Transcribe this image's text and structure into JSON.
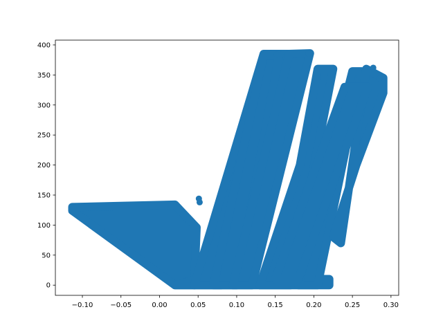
{
  "chart_data": {
    "type": "scatter",
    "title": "",
    "xlabel": "",
    "ylabel": "",
    "xlim": [
      -0.135,
      0.31
    ],
    "ylim": [
      -17,
      408
    ],
    "grid": false,
    "legend": "none",
    "marker_color": "#1f77b4",
    "x_ticks": [
      -0.1,
      -0.05,
      0.0,
      0.05,
      0.1,
      0.15,
      0.2,
      0.25,
      0.3
    ],
    "x_tick_labels": [
      "−0.10",
      "−0.05",
      "0.00",
      "0.05",
      "0.10",
      "0.15",
      "0.20",
      "0.25",
      "0.30"
    ],
    "y_ticks": [
      0,
      50,
      100,
      150,
      200,
      250,
      300,
      350,
      400
    ],
    "y_tick_labels": [
      "0",
      "50",
      "100",
      "150",
      "200",
      "250",
      "300",
      "350",
      "400"
    ],
    "series": [
      {
        "regions": [
          {
            "shape": "polygon",
            "points": [
              [
                -0.113,
                130
              ],
              [
                0.02,
                134
              ],
              [
                0.048,
                96
              ],
              [
                0.045,
                0
              ],
              [
                0.02,
                0
              ],
              [
                -0.113,
                124
              ]
            ]
          },
          {
            "shape": "polygon",
            "points": [
              [
                0.02,
                0
              ],
              [
                0.22,
                0
              ],
              [
                0.22,
                10
              ],
              [
                0.05,
                10
              ]
            ]
          },
          {
            "shape": "polygon",
            "points": [
              [
                0.045,
                0
              ],
              [
                0.135,
                385
              ],
              [
                0.175,
                385
              ],
              [
                0.08,
                0
              ]
            ]
          },
          {
            "shape": "polygon",
            "points": [
              [
                0.07,
                0
              ],
              [
                0.135,
                383
              ],
              [
                0.155,
                383
              ],
              [
                0.1,
                0
              ]
            ]
          },
          {
            "shape": "polygon",
            "points": [
              [
                0.095,
                0
              ],
              [
                0.168,
                385
              ],
              [
                0.195,
                386
              ],
              [
                0.12,
                0
              ]
            ]
          },
          {
            "shape": "polygon",
            "points": [
              [
                0.13,
                0
              ],
              [
                0.182,
                200
              ],
              [
                0.205,
                360
              ],
              [
                0.225,
                360
              ],
              [
                0.17,
                0
              ]
            ]
          },
          {
            "shape": "polygon",
            "points": [
              [
                0.18,
                0
              ],
              [
                0.25,
                356
              ],
              [
                0.262,
                356
              ],
              [
                0.205,
                0
              ]
            ]
          },
          {
            "shape": "polygon",
            "points": [
              [
                0.235,
                70
              ],
              [
                0.268,
                360
              ],
              [
                0.29,
                345
              ],
              [
                0.29,
                320
              ],
              [
                0.255,
                200
              ],
              [
                0.225,
                80
              ]
            ]
          },
          {
            "shape": "polygon",
            "points": [
              [
                0.15,
                10
              ],
              [
                0.24,
                330
              ],
              [
                0.27,
                330
              ],
              [
                0.18,
                10
              ]
            ]
          }
        ],
        "outliers": [
          [
            0.051,
            144
          ],
          [
            0.052,
            138
          ],
          [
            0.277,
            362
          ],
          [
            0.285,
            344
          ],
          [
            0.193,
            386
          ],
          [
            0.152,
            384
          ]
        ]
      }
    ]
  }
}
